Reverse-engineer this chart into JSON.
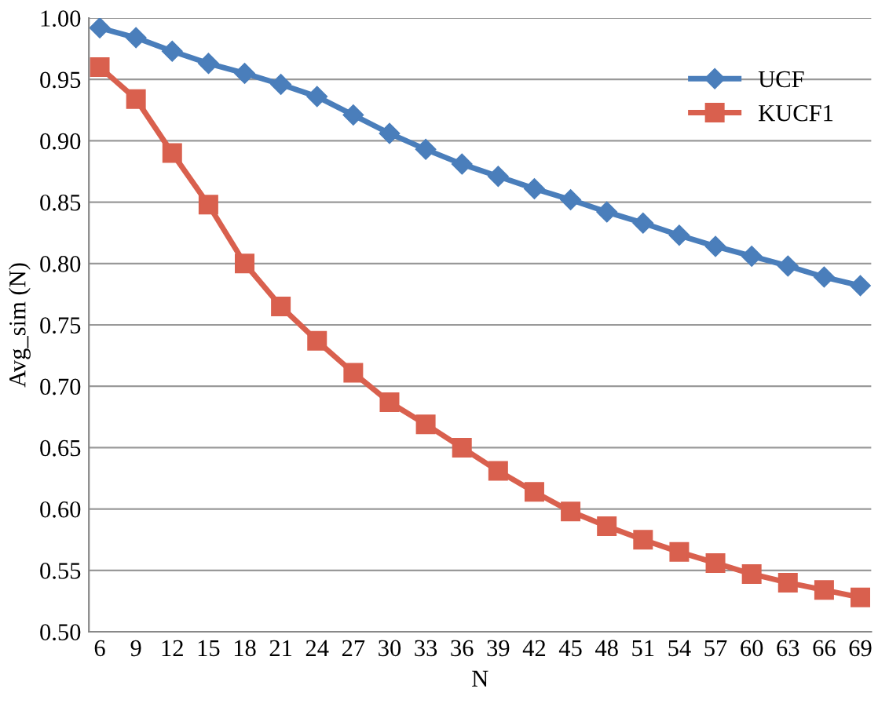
{
  "chart_data": {
    "type": "line",
    "xlabel": "N",
    "ylabel": "Avg_sim (N)",
    "categories": [
      "6",
      "9",
      "12",
      "15",
      "18",
      "21",
      "24",
      "27",
      "30",
      "33",
      "36",
      "39",
      "42",
      "45",
      "48",
      "51",
      "54",
      "57",
      "60",
      "63",
      "66",
      "69"
    ],
    "series": [
      {
        "name": "UCF",
        "color": "#4a7ebb",
        "marker": "diamond",
        "values": [
          0.992,
          0.984,
          0.973,
          0.963,
          0.955,
          0.946,
          0.936,
          0.921,
          0.906,
          0.893,
          0.881,
          0.871,
          0.861,
          0.852,
          0.842,
          0.833,
          0.823,
          0.814,
          0.806,
          0.798,
          0.789,
          0.782
        ]
      },
      {
        "name": "KUCF1",
        "color": "#d9604e",
        "marker": "square",
        "values": [
          0.96,
          0.934,
          0.89,
          0.848,
          0.8,
          0.765,
          0.737,
          0.711,
          0.687,
          0.669,
          0.65,
          0.631,
          0.614,
          0.598,
          0.586,
          0.575,
          0.565,
          0.556,
          0.547,
          0.54,
          0.534,
          0.528
        ]
      }
    ],
    "ylim": [
      0.5,
      1.0
    ],
    "yticks": [
      {
        "value": 0.5,
        "label": "0.50"
      },
      {
        "value": 0.55,
        "label": "0.55"
      },
      {
        "value": 0.6,
        "label": "0.60"
      },
      {
        "value": 0.65,
        "label": "0.65"
      },
      {
        "value": 0.7,
        "label": "0.70"
      },
      {
        "value": 0.75,
        "label": "0.75"
      },
      {
        "value": 0.8,
        "label": "0.80"
      },
      {
        "value": 0.85,
        "label": "0.85"
      },
      {
        "value": 0.9,
        "label": "0.90"
      },
      {
        "value": 0.95,
        "label": "0.95"
      },
      {
        "value": 1.0,
        "label": "1.00"
      }
    ],
    "grid": "y",
    "legend": "top right",
    "line_style": "solid"
  }
}
